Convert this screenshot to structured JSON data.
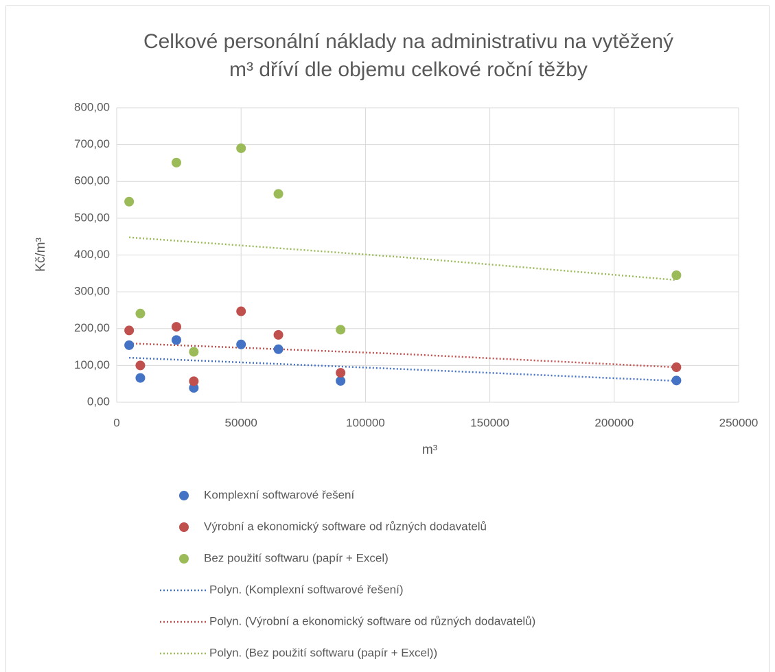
{
  "chart_data": {
    "type": "scatter",
    "title": [
      "Celkové personální náklady na administrativu na vytěžený",
      "m³ dříví dle objemu celkové roční těžby"
    ],
    "xlabel": "m³",
    "ylabel": "Kč/m³",
    "xlim": [
      0,
      250000
    ],
    "ylim": [
      0,
      800
    ],
    "xticks": [
      0,
      50000,
      100000,
      150000,
      200000,
      250000
    ],
    "yticks": [
      {
        "value": 0,
        "label": "0,00"
      },
      {
        "value": 100,
        "label": "100,00"
      },
      {
        "value": 200,
        "label": "200,00"
      },
      {
        "value": 300,
        "label": "300,00"
      },
      {
        "value": 400,
        "label": "400,00"
      },
      {
        "value": 500,
        "label": "500,00"
      },
      {
        "value": 600,
        "label": "600,00"
      },
      {
        "value": 700,
        "label": "700,00"
      },
      {
        "value": 800,
        "label": "800,00"
      }
    ],
    "grid": true,
    "legend": "bottom",
    "series": [
      {
        "name": "Komplexní softwarové řešení",
        "color": "#4472c4",
        "x": [
          5000,
          9500,
          24000,
          31000,
          50000,
          65000,
          90000,
          225000
        ],
        "values": [
          155,
          66,
          169,
          39,
          157,
          144,
          58,
          59
        ]
      },
      {
        "name": "Výrobní a ekonomický software od různých dodavatelů",
        "color": "#c0504d",
        "x": [
          5000,
          9500,
          24000,
          31000,
          50000,
          65000,
          90000,
          225000
        ],
        "values": [
          195,
          100,
          205,
          57,
          247,
          183,
          80,
          95
        ]
      },
      {
        "name": "Bez použití softwaru (papír + Excel)",
        "color": "#9bbb59",
        "x": [
          5000,
          9500,
          24000,
          31000,
          50000,
          65000,
          90000,
          225000
        ],
        "values": [
          545,
          241,
          651,
          137,
          690,
          566,
          197,
          345
        ]
      }
    ],
    "trendlines": [
      {
        "name": "Polyn. (Komplexní softwarové řešení)",
        "color": "#4472c4",
        "x": [
          5000,
          115000,
          225000
        ],
        "values": [
          121,
          90,
          58
        ]
      },
      {
        "name": "Polyn. (Výrobní a ekonomický software od různých dodavatelů)",
        "color": "#c0504d",
        "x": [
          5000,
          115000,
          225000
        ],
        "values": [
          160,
          131,
          95
        ]
      },
      {
        "name": "Polyn. (Bez použití softwaru (papír + Excel))",
        "color": "#9bbb59",
        "x": [
          5000,
          115000,
          225000
        ],
        "values": [
          448,
          394,
          332
        ]
      }
    ]
  }
}
